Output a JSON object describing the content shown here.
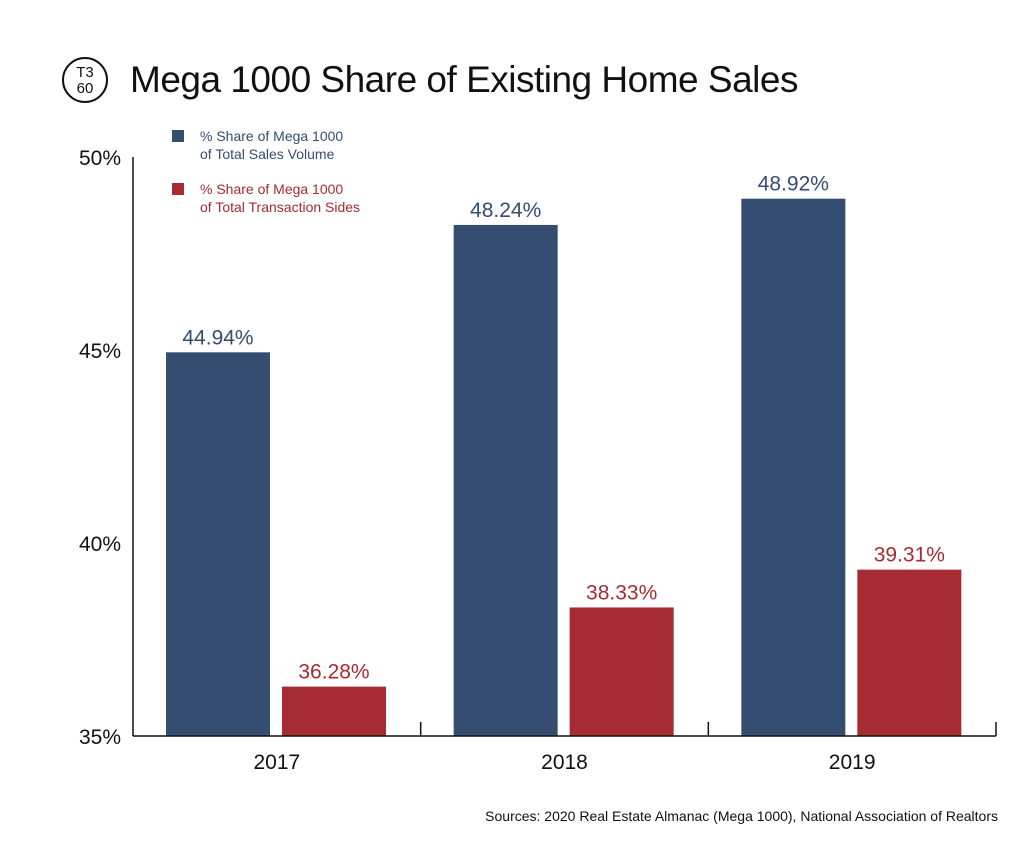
{
  "logo": {
    "top_text": "T3",
    "bottom_text": "60"
  },
  "colors": {
    "volume": "#344d70",
    "sides": "#a62b33",
    "axis": "#111111"
  },
  "chart_data": {
    "type": "bar",
    "title": "Mega 1000 Share of Existing Home Sales",
    "xlabel": "",
    "ylabel": "",
    "categories": [
      "2017",
      "2018",
      "2019"
    ],
    "ylim": [
      35,
      50
    ],
    "y_ticks": [
      {
        "value": 50,
        "label": "50%"
      },
      {
        "value": 45,
        "label": "45%"
      },
      {
        "value": 40,
        "label": "40%"
      },
      {
        "value": 35,
        "label": "35%"
      }
    ],
    "grid": false,
    "legend_position": "top-left",
    "series": [
      {
        "name_line1": "% Share of Mega 1000",
        "name_line2": "of Total Sales Volume",
        "color": "#344d70",
        "values": [
          44.94,
          48.24,
          48.92
        ],
        "labels": [
          "44.94%",
          "48.24%",
          "48.92%"
        ]
      },
      {
        "name_line1": "% Share of Mega 1000",
        "name_line2": "of Total Transaction Sides",
        "color": "#a62b33",
        "values": [
          36.28,
          38.33,
          39.31
        ],
        "labels": [
          "36.28%",
          "38.33%",
          "39.31%"
        ]
      }
    ]
  },
  "source": "Sources: 2020 Real Estate Almanac (Mega 1000), National Association of Realtors"
}
